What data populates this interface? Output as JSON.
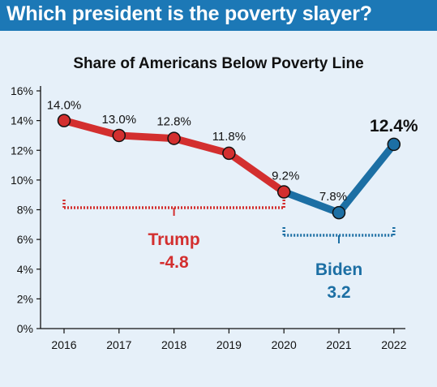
{
  "banner": {
    "title": "Which president is the poverty slayer?"
  },
  "chart_data": {
    "type": "line",
    "title": "Share of Americans Below Poverty Line",
    "xlabel": "",
    "ylabel": "",
    "categories": [
      "2016",
      "2017",
      "2018",
      "2019",
      "2020",
      "2021",
      "2022"
    ],
    "values": [
      14.0,
      13.0,
      12.8,
      11.8,
      9.2,
      7.8,
      12.4
    ],
    "data_labels": [
      "14.0%",
      "13.0%",
      "12.8%",
      "11.8%",
      "9.2%",
      "7.8%",
      "12.4%"
    ],
    "ylim": [
      0,
      16
    ],
    "yticks": [
      0,
      2,
      4,
      6,
      8,
      10,
      12,
      14,
      16
    ],
    "ytick_labels": [
      "0%",
      "2%",
      "4%",
      "6%",
      "8%",
      "10%",
      "12%",
      "14%",
      "16%"
    ],
    "grid": false,
    "segments": [
      {
        "name": "Trump",
        "from": "2016",
        "to": "2020",
        "color": "#d32f2f"
      },
      {
        "name": "Biden",
        "from": "2020",
        "to": "2022",
        "color": "#1c6fa4"
      }
    ],
    "annotations": [
      {
        "name": "Trump",
        "change": "-4.8",
        "color": "#d32f2f",
        "from": "2016",
        "to": "2020"
      },
      {
        "name": "Biden",
        "change": "3.2",
        "color": "#1c6fa4",
        "from": "2020",
        "to": "2022"
      }
    ]
  }
}
